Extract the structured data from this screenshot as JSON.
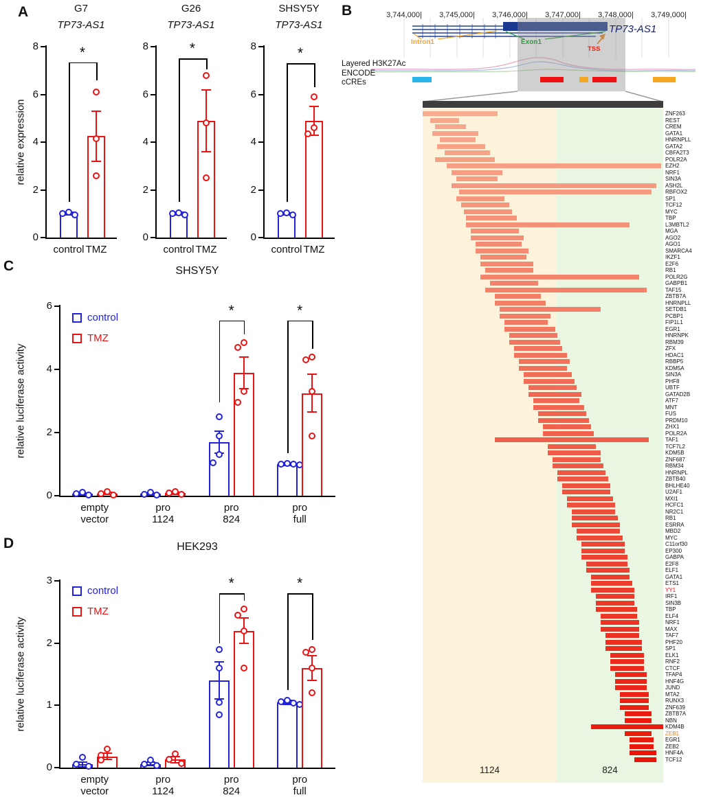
{
  "panel_labels": {
    "A": "A",
    "B": "B",
    "C": "C",
    "D": "D"
  },
  "colors": {
    "control": "#2222dd",
    "tmz": "#ee1111"
  },
  "genome_browser": {
    "coordinates": [
      "3,744,000",
      "3,745,000",
      "3,746,000",
      "3,747,000",
      "3,748,000",
      "3,749,000"
    ],
    "gene": "TP73-AS1",
    "features": [
      {
        "label": "Intron1",
        "color": "#f5a623"
      },
      {
        "label": "Exon1",
        "color": "#2e9e3e"
      },
      {
        "label": "TSS",
        "color": "#ee2211"
      }
    ],
    "tracks": [
      {
        "label": "Layered H3K27Ac"
      },
      {
        "label": "ENCODE cCREs"
      }
    ],
    "ccre_boxes": [
      {
        "color": "#29b6e8"
      },
      {
        "color": "#ee1111"
      },
      {
        "color": "#f5a623"
      },
      {
        "color": "#ee1111"
      },
      {
        "color": "#f5a623"
      }
    ]
  },
  "chart_data": [
    {
      "id": "A_G7",
      "type": "bar",
      "title": "G7",
      "subtitle": "TP73-AS1",
      "ylabel": "relative expression",
      "ylim": [
        0,
        8
      ],
      "yticks": [
        0,
        2,
        4,
        6,
        8
      ],
      "categories": [
        "control",
        "TMZ"
      ],
      "bars": [
        {
          "name": "control",
          "color": "#2222dd",
          "value": 1.0,
          "err": 0.06,
          "points": [
            1.06,
            1.0,
            0.95
          ]
        },
        {
          "name": "TMZ",
          "color": "#ee1111",
          "value": 4.25,
          "err": 1.05,
          "points": [
            6.1,
            4.15,
            2.6
          ]
        }
      ],
      "bracket": {
        "top": 7.35,
        "left_to": 1.5,
        "right_to": 6.6,
        "label": "*"
      }
    },
    {
      "id": "A_G26",
      "type": "bar",
      "title": "G26",
      "subtitle": "TP73-AS1",
      "ylim": [
        0,
        8
      ],
      "yticks": [
        0,
        2,
        4,
        6,
        8
      ],
      "categories": [
        "control",
        "TMZ"
      ],
      "bars": [
        {
          "name": "control",
          "color": "#2222dd",
          "value": 1.0,
          "err": 0.06,
          "points": [
            1.05,
            1.0,
            0.96
          ]
        },
        {
          "name": "TMZ",
          "color": "#ee1111",
          "value": 4.9,
          "err": 1.3,
          "points": [
            6.8,
            4.8,
            2.5
          ]
        }
      ],
      "bracket": {
        "top": 7.5,
        "left_to": 1.5,
        "right_to": 7.05,
        "label": "*"
      }
    },
    {
      "id": "A_SHSY5Y",
      "type": "bar",
      "title": "SHSY5Y",
      "subtitle": "TP73-AS1",
      "ylim": [
        0,
        8
      ],
      "yticks": [
        0,
        2,
        4,
        6,
        8
      ],
      "categories": [
        "control",
        "TMZ"
      ],
      "bars": [
        {
          "name": "control",
          "color": "#2222dd",
          "value": 1.0,
          "err": 0.05,
          "points": [
            1.04,
            1.0,
            0.96
          ]
        },
        {
          "name": "TMZ",
          "color": "#ee1111",
          "value": 4.9,
          "err": 0.6,
          "points": [
            5.9,
            4.6,
            4.35
          ]
        }
      ],
      "bracket": {
        "top": 7.3,
        "left_to": 1.5,
        "right_to": 6.3,
        "label": "*"
      }
    },
    {
      "id": "C_SHSY5Y",
      "type": "grouped-bar",
      "title": "SHSY5Y",
      "ylabel": "relative luciferase activity",
      "ylim": [
        0,
        6
      ],
      "yticks": [
        0,
        2,
        4,
        6
      ],
      "legend": [
        {
          "label": "control",
          "color": "#2222dd"
        },
        {
          "label": "TMZ",
          "color": "#ee1111"
        }
      ],
      "groups": [
        {
          "label": "empty\nvector",
          "bars": [
            {
              "series": "control",
              "value": 0.06,
              "err": 0.03,
              "points": [
                0.1,
                0.06,
                0.03
              ]
            },
            {
              "series": "TMZ",
              "value": 0.07,
              "err": 0.03,
              "points": [
                0.12,
                0.07,
                0.03
              ]
            }
          ]
        },
        {
          "label": "pro\n1124",
          "bars": [
            {
              "series": "control",
              "value": 0.06,
              "err": 0.03,
              "points": [
                0.1,
                0.05,
                0.03
              ]
            },
            {
              "series": "TMZ",
              "value": 0.08,
              "err": 0.03,
              "points": [
                0.12,
                0.08,
                0.04
              ]
            }
          ]
        },
        {
          "label": "pro\n824",
          "bars": [
            {
              "series": "control",
              "value": 1.7,
              "err": 0.35,
              "points": [
                2.5,
                1.9,
                1.3,
                1.05
              ]
            },
            {
              "series": "TMZ",
              "value": 3.9,
              "err": 0.5,
              "points": [
                4.85,
                4.7,
                3.3,
                2.95
              ]
            }
          ]
        },
        {
          "label": "pro\nfull",
          "bars": [
            {
              "series": "control",
              "value": 1.0,
              "err": 0.05,
              "points": [
                1.03,
                1.0,
                0.99,
                0.97
              ]
            },
            {
              "series": "TMZ",
              "value": 3.25,
              "err": 0.6,
              "points": [
                4.4,
                4.3,
                3.3,
                1.9
              ]
            }
          ]
        }
      ],
      "brackets": [
        {
          "group": 2,
          "top": 5.55,
          "left_to": 2.95,
          "right_to": 5.1,
          "label": "*"
        },
        {
          "group": 3,
          "top": 5.55,
          "left_to": 1.35,
          "right_to": 4.65,
          "label": "*"
        }
      ]
    },
    {
      "id": "D_HEK293",
      "type": "grouped-bar",
      "title": "HEK293",
      "ylabel": "relative luciferase activity",
      "ylim": [
        0,
        3
      ],
      "yticks": [
        0,
        1,
        2,
        3
      ],
      "legend": [
        {
          "label": "control",
          "color": "#2222dd"
        },
        {
          "label": "TMZ",
          "color": "#ee1111"
        }
      ],
      "groups": [
        {
          "label": "empty\nvector",
          "bars": [
            {
              "series": "control",
              "value": 0.05,
              "err": 0.04,
              "points": [
                0.16,
                0.06,
                0.02
              ]
            },
            {
              "series": "TMZ",
              "value": 0.18,
              "err": 0.05,
              "points": [
                0.3,
                0.2,
                0.12
              ]
            }
          ]
        },
        {
          "label": "pro\n1124",
          "bars": [
            {
              "series": "control",
              "value": 0.06,
              "err": 0.03,
              "points": [
                0.12,
                0.06,
                0.03
              ]
            },
            {
              "series": "TMZ",
              "value": 0.13,
              "err": 0.05,
              "points": [
                0.22,
                0.13,
                0.07
              ]
            }
          ]
        },
        {
          "label": "pro\n824",
          "bars": [
            {
              "series": "control",
              "value": 1.4,
              "err": 0.3,
              "points": [
                1.9,
                1.6,
                1.05,
                0.85
              ]
            },
            {
              "series": "TMZ",
              "value": 2.2,
              "err": 0.2,
              "points": [
                2.55,
                2.45,
                2.2,
                1.6
              ]
            }
          ]
        },
        {
          "label": "pro\nfull",
          "bars": [
            {
              "series": "control",
              "value": 1.05,
              "err": 0.03,
              "points": [
                1.08,
                1.06,
                1.04,
                1.02
              ]
            },
            {
              "series": "TMZ",
              "value": 1.6,
              "err": 0.2,
              "points": [
                1.9,
                1.85,
                1.6,
                1.2
              ]
            }
          ]
        }
      ],
      "brackets": [
        {
          "group": 2,
          "top": 2.8,
          "left_to": 2.0,
          "right_to": 2.68,
          "label": "*"
        },
        {
          "group": 3,
          "top": 2.8,
          "left_to": 1.25,
          "right_to": 2.05,
          "label": "*"
        }
      ]
    },
    {
      "id": "B_TF",
      "type": "interval-bar",
      "regions": [
        {
          "label": "1124",
          "span": [
            0,
            0.557
          ],
          "bg": "#fdf3da"
        },
        {
          "label": "824",
          "span": [
            0.557,
            1
          ],
          "bg": "#e9f6e2"
        }
      ],
      "bar_gradient": [
        "#f7ab8f",
        "#e91408"
      ],
      "rows": [
        {
          "l": "ZNF263",
          "s": 0.0,
          "e": 0.31
        },
        {
          "l": "REST",
          "s": 0.03,
          "e": 0.15
        },
        {
          "l": "CREM",
          "s": 0.05,
          "e": 0.18
        },
        {
          "l": "GATA1",
          "s": 0.04,
          "e": 0.23
        },
        {
          "l": "HNRNPLL",
          "s": 0.07,
          "e": 0.22
        },
        {
          "l": "GATA2",
          "s": 0.06,
          "e": 0.26
        },
        {
          "l": "CBFA2T3",
          "s": 0.09,
          "e": 0.28
        },
        {
          "l": "POLR2A",
          "s": 0.05,
          "e": 0.3
        },
        {
          "l": "EZH2",
          "s": 0.1,
          "e": 0.99
        },
        {
          "l": "NRF1",
          "s": 0.12,
          "e": 0.33
        },
        {
          "l": "SIN3A",
          "s": 0.14,
          "e": 0.31
        },
        {
          "l": "ASH2L",
          "s": 0.12,
          "e": 0.97
        },
        {
          "l": "RBFOX2",
          "s": 0.15,
          "e": 0.95
        },
        {
          "l": "SP1",
          "s": 0.14,
          "e": 0.34
        },
        {
          "l": "TCF12",
          "s": 0.16,
          "e": 0.36
        },
        {
          "l": "MYC",
          "s": 0.17,
          "e": 0.37
        },
        {
          "l": "TBP",
          "s": 0.18,
          "e": 0.39
        },
        {
          "l": "L3MBTL2",
          "s": 0.18,
          "e": 0.86
        },
        {
          "l": "MGA",
          "s": 0.2,
          "e": 0.4
        },
        {
          "l": "AGO2",
          "s": 0.2,
          "e": 0.42
        },
        {
          "l": "AGO1",
          "s": 0.22,
          "e": 0.41
        },
        {
          "l": "SMARCA4",
          "s": 0.22,
          "e": 0.44
        },
        {
          "l": "IKZF1",
          "s": 0.24,
          "e": 0.43
        },
        {
          "l": "E2F6",
          "s": 0.24,
          "e": 0.46
        },
        {
          "l": "RB1",
          "s": 0.26,
          "e": 0.46
        },
        {
          "l": "POLR2G",
          "s": 0.24,
          "e": 0.9
        },
        {
          "l": "GABPB1",
          "s": 0.28,
          "e": 0.48
        },
        {
          "l": "TAF15",
          "s": 0.26,
          "e": 0.93
        },
        {
          "l": "ZBTB7A",
          "s": 0.3,
          "e": 0.49
        },
        {
          "l": "HNRNPLL",
          "s": 0.3,
          "e": 0.51
        },
        {
          "l": "SETDB1",
          "s": 0.32,
          "e": 0.74
        },
        {
          "l": "PCBP1",
          "s": 0.32,
          "e": 0.53
        },
        {
          "l": "FIP1L1",
          "s": 0.34,
          "e": 0.52
        },
        {
          "l": "EGR1",
          "s": 0.34,
          "e": 0.55
        },
        {
          "l": "HNRNPK",
          "s": 0.36,
          "e": 0.56
        },
        {
          "l": "RBM39",
          "s": 0.36,
          "e": 0.57
        },
        {
          "l": "ZFX",
          "s": 0.38,
          "e": 0.58
        },
        {
          "l": "HDAC1",
          "s": 0.38,
          "e": 0.6
        },
        {
          "l": "RBBP5",
          "s": 0.4,
          "e": 0.61
        },
        {
          "l": "KDM5A",
          "s": 0.4,
          "e": 0.6
        },
        {
          "l": "SIN3A",
          "s": 0.42,
          "e": 0.62
        },
        {
          "l": "PHF8",
          "s": 0.42,
          "e": 0.63
        },
        {
          "l": "UBTF",
          "s": 0.44,
          "e": 0.64
        },
        {
          "l": "GATAD2B",
          "s": 0.44,
          "e": 0.66
        },
        {
          "l": "ATF7",
          "s": 0.46,
          "e": 0.65
        },
        {
          "l": "MNT",
          "s": 0.46,
          "e": 0.67
        },
        {
          "l": "FUS",
          "s": 0.48,
          "e": 0.68
        },
        {
          "l": "PRDM10",
          "s": 0.48,
          "e": 0.69
        },
        {
          "l": "ZHX1",
          "s": 0.5,
          "e": 0.7
        },
        {
          "l": "POLR2A",
          "s": 0.5,
          "e": 0.71
        },
        {
          "l": "TAF1",
          "s": 0.3,
          "e": 0.94
        },
        {
          "l": "TCF7L2",
          "s": 0.52,
          "e": 0.72
        },
        {
          "l": "KDM5B",
          "s": 0.52,
          "e": 0.74
        },
        {
          "l": "ZNF687",
          "s": 0.54,
          "e": 0.74
        },
        {
          "l": "RBM34",
          "s": 0.54,
          "e": 0.75
        },
        {
          "l": "HNRNPL",
          "s": 0.56,
          "e": 0.76
        },
        {
          "l": "ZBTB40",
          "s": 0.56,
          "e": 0.77
        },
        {
          "l": "BHLHE40",
          "s": 0.58,
          "e": 0.78
        },
        {
          "l": "U2AF1",
          "s": 0.58,
          "e": 0.78
        },
        {
          "l": "MXI1",
          "s": 0.6,
          "e": 0.79
        },
        {
          "l": "HCFC1",
          "s": 0.6,
          "e": 0.8
        },
        {
          "l": "NR2C1",
          "s": 0.62,
          "e": 0.8
        },
        {
          "l": "RB1",
          "s": 0.62,
          "e": 0.81
        },
        {
          "l": "ESRRA",
          "s": 0.62,
          "e": 0.82
        },
        {
          "l": "MBD2",
          "s": 0.64,
          "e": 0.82
        },
        {
          "l": "MYC",
          "s": 0.64,
          "e": 0.83
        },
        {
          "l": "C11orf30",
          "s": 0.66,
          "e": 0.84
        },
        {
          "l": "EP300",
          "s": 0.66,
          "e": 0.84
        },
        {
          "l": "GABPA",
          "s": 0.66,
          "e": 0.85
        },
        {
          "l": "E2F8",
          "s": 0.68,
          "e": 0.85
        },
        {
          "l": "ELF1",
          "s": 0.68,
          "e": 0.86
        },
        {
          "l": "GATA1",
          "s": 0.7,
          "e": 0.86
        },
        {
          "l": "ETS1",
          "s": 0.7,
          "e": 0.87
        },
        {
          "l": "YY1",
          "s": 0.7,
          "e": 0.88,
          "c": "#ee1111"
        },
        {
          "l": "IRF1",
          "s": 0.72,
          "e": 0.88
        },
        {
          "l": "SIN3B",
          "s": 0.72,
          "e": 0.88
        },
        {
          "l": "TBP",
          "s": 0.72,
          "e": 0.89
        },
        {
          "l": "ELF4",
          "s": 0.74,
          "e": 0.89
        },
        {
          "l": "NRF1",
          "s": 0.74,
          "e": 0.9
        },
        {
          "l": "MAX",
          "s": 0.74,
          "e": 0.9
        },
        {
          "l": "TAF7",
          "s": 0.76,
          "e": 0.9
        },
        {
          "l": "PHF20",
          "s": 0.76,
          "e": 0.91
        },
        {
          "l": "SP1",
          "s": 0.76,
          "e": 0.91
        },
        {
          "l": "ELK1",
          "s": 0.78,
          "e": 0.92
        },
        {
          "l": "RNF2",
          "s": 0.78,
          "e": 0.92
        },
        {
          "l": "CTCF",
          "s": 0.78,
          "e": 0.92
        },
        {
          "l": "TFAP4",
          "s": 0.8,
          "e": 0.93
        },
        {
          "l": "HNF4G",
          "s": 0.8,
          "e": 0.93
        },
        {
          "l": "JUND",
          "s": 0.8,
          "e": 0.93
        },
        {
          "l": "MTA2",
          "s": 0.82,
          "e": 0.94
        },
        {
          "l": "RUNX3",
          "s": 0.82,
          "e": 0.94
        },
        {
          "l": "ZNF639",
          "s": 0.82,
          "e": 0.94
        },
        {
          "l": "ZBTB7A",
          "s": 0.84,
          "e": 0.95
        },
        {
          "l": "NBN",
          "s": 0.84,
          "e": 0.95
        },
        {
          "l": "KDM4B",
          "s": 0.7,
          "e": 1.0
        },
        {
          "l": "ZEB1",
          "s": 0.84,
          "e": 0.95,
          "c": "#f07f20"
        },
        {
          "l": "EGR1",
          "s": 0.86,
          "e": 0.96
        },
        {
          "l": "ZEB2",
          "s": 0.86,
          "e": 0.96
        },
        {
          "l": "HNF4A",
          "s": 0.86,
          "e": 0.97
        },
        {
          "l": "TCF12",
          "s": 0.88,
          "e": 0.97
        }
      ]
    }
  ]
}
